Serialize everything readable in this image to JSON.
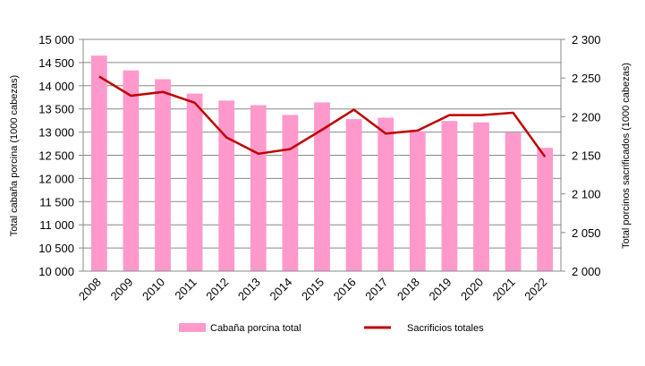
{
  "chart_data": {
    "type": "bar+line",
    "categories": [
      "2008",
      "2009",
      "2010",
      "2011",
      "2012",
      "2013",
      "2014",
      "2015",
      "2016",
      "2017",
      "2018",
      "2019",
      "2020",
      "2021",
      "2022"
    ],
    "series": [
      {
        "name": "Cabaña porcina total",
        "type": "bar",
        "axis": "left",
        "color": "#ff99cc",
        "values": [
          14650,
          14330,
          14140,
          13830,
          13680,
          13580,
          13370,
          13640,
          13280,
          13310,
          13020,
          13240,
          13210,
          12990,
          12660
        ]
      },
      {
        "name": "Sacrificios totales",
        "type": "line",
        "axis": "right",
        "color": "#c00000",
        "values": [
          2252,
          2227,
          2232,
          2218,
          2173,
          2152,
          2158,
          2183,
          2209,
          2178,
          2182,
          2202,
          2202,
          2205,
          2148
        ]
      }
    ],
    "y_left": {
      "label": "Total cabaña porcina (1000 cabezas)",
      "min": 10000,
      "max": 15000,
      "step": 500,
      "tick_labels": [
        "10 000",
        "10 500",
        "11 000",
        "11 500",
        "12 000",
        "12 500",
        "13 000",
        "13 500",
        "14 000",
        "14 500",
        "15 000"
      ]
    },
    "y_right": {
      "label": "Total porcinos sacrificados (1000 cabezas)",
      "min": 2000,
      "max": 2300,
      "step": 50,
      "tick_labels": [
        "2 000",
        "2 050",
        "2 100",
        "2 150",
        "2 200",
        "2 250",
        "2 300"
      ]
    },
    "grid": "horizontal",
    "legend_position": "bottom"
  }
}
